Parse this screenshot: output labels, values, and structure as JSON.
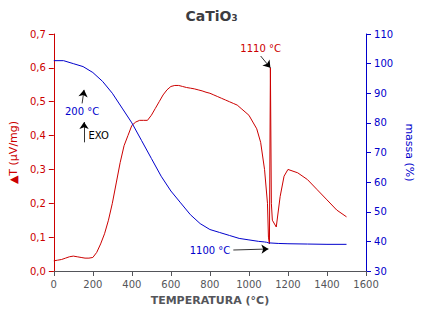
{
  "chart_data": {
    "type": "line",
    "title": "CaTiO₃",
    "xlabel": "TEMPERATURA (°C)",
    "ylabel": "▲T (μV/mg)",
    "y2label": "massa (%)",
    "xlim": [
      0,
      1600
    ],
    "xticks": [
      0,
      200,
      400,
      600,
      800,
      1000,
      1200,
      1400,
      1600
    ],
    "ylim": [
      0.0,
      0.7
    ],
    "yticks": [
      {
        "value": 0.0,
        "label": "0,0"
      },
      {
        "value": 0.1,
        "label": "0,1"
      },
      {
        "value": 0.2,
        "label": "0,2"
      },
      {
        "value": 0.3,
        "label": "0,3"
      },
      {
        "value": 0.4,
        "label": "0,4"
      },
      {
        "value": 0.5,
        "label": "0,5"
      },
      {
        "value": 0.6,
        "label": "0,6"
      },
      {
        "value": 0.7,
        "label": "0,7"
      }
    ],
    "y2lim": [
      30,
      110
    ],
    "y2ticks": [
      30,
      40,
      50,
      60,
      70,
      80,
      90,
      100,
      110
    ],
    "grid": false,
    "series": [
      {
        "color": "#cc0000",
        "x": [
          0,
          20,
          40,
          60,
          80,
          100,
          120,
          140,
          160,
          180,
          200,
          220,
          240,
          260,
          280,
          300,
          320,
          340,
          360,
          380,
          400,
          420,
          440,
          460,
          480,
          500,
          520,
          540,
          560,
          580,
          600,
          620,
          640,
          660,
          680,
          700,
          720,
          740,
          760,
          780,
          800,
          820,
          840,
          860,
          880,
          900,
          920,
          940,
          960,
          980,
          1000,
          1020,
          1040,
          1060,
          1080,
          1095,
          1100,
          1105,
          1110,
          1115,
          1120,
          1140,
          1160,
          1180,
          1200,
          1250,
          1300,
          1350,
          1400,
          1450,
          1500
        ],
        "values": [
          0.03,
          0.032,
          0.034,
          0.038,
          0.042,
          0.044,
          0.042,
          0.04,
          0.038,
          0.038,
          0.04,
          0.055,
          0.08,
          0.11,
          0.15,
          0.2,
          0.26,
          0.32,
          0.37,
          0.4,
          0.43,
          0.44,
          0.445,
          0.445,
          0.445,
          0.46,
          0.48,
          0.5,
          0.52,
          0.535,
          0.545,
          0.548,
          0.548,
          0.545,
          0.542,
          0.54,
          0.538,
          0.535,
          0.532,
          0.528,
          0.525,
          0.52,
          0.515,
          0.51,
          0.505,
          0.5,
          0.495,
          0.49,
          0.48,
          0.47,
          0.46,
          0.44,
          0.42,
          0.38,
          0.3,
          0.2,
          0.1,
          0.08,
          0.6,
          0.2,
          0.15,
          0.13,
          0.22,
          0.28,
          0.3,
          0.29,
          0.27,
          0.24,
          0.21,
          0.18,
          0.16
        ]
      },
      {
        "color": "#0000cc",
        "axis": "y2",
        "x": [
          0,
          50,
          100,
          150,
          200,
          250,
          300,
          350,
          400,
          450,
          500,
          550,
          600,
          650,
          700,
          750,
          800,
          850,
          900,
          950,
          1000,
          1050,
          1080,
          1090,
          1100,
          1150,
          1200,
          1300,
          1400,
          1500
        ],
        "values": [
          101,
          101,
          100,
          99,
          97,
          94,
          90,
          85,
          80,
          74,
          68,
          62,
          57,
          53,
          49,
          46,
          44,
          43,
          42,
          41,
          40.5,
          40,
          39.8,
          39.7,
          39.5,
          39.3,
          39.2,
          39.1,
          39.0,
          39.0
        ]
      }
    ],
    "annotations": [
      {
        "text": "200 °C",
        "color": "#0000cc",
        "x": 145,
        "y": 0.495,
        "arrow": [
          [
            145,
            0.495
          ],
          [
            155,
            0.535
          ]
        ]
      },
      {
        "text": "EXO",
        "color": "#000000",
        "x": 162,
        "y": 0.4,
        "arrow": [
          [
            155,
            0.38
          ],
          [
            155,
            0.44
          ]
        ]
      },
      {
        "text": "1110 °C",
        "color": "#cc0000",
        "x": 1060,
        "y": 0.635,
        "arrow": [
          [
            1060,
            0.635
          ],
          [
            1110,
            0.6
          ]
        ]
      },
      {
        "text": "1100 °C",
        "color": "#0000cc",
        "x": 920,
        "y": 0.062,
        "arrow": [
          [
            920,
            0.062
          ],
          [
            1100,
            0.065
          ]
        ]
      }
    ]
  }
}
